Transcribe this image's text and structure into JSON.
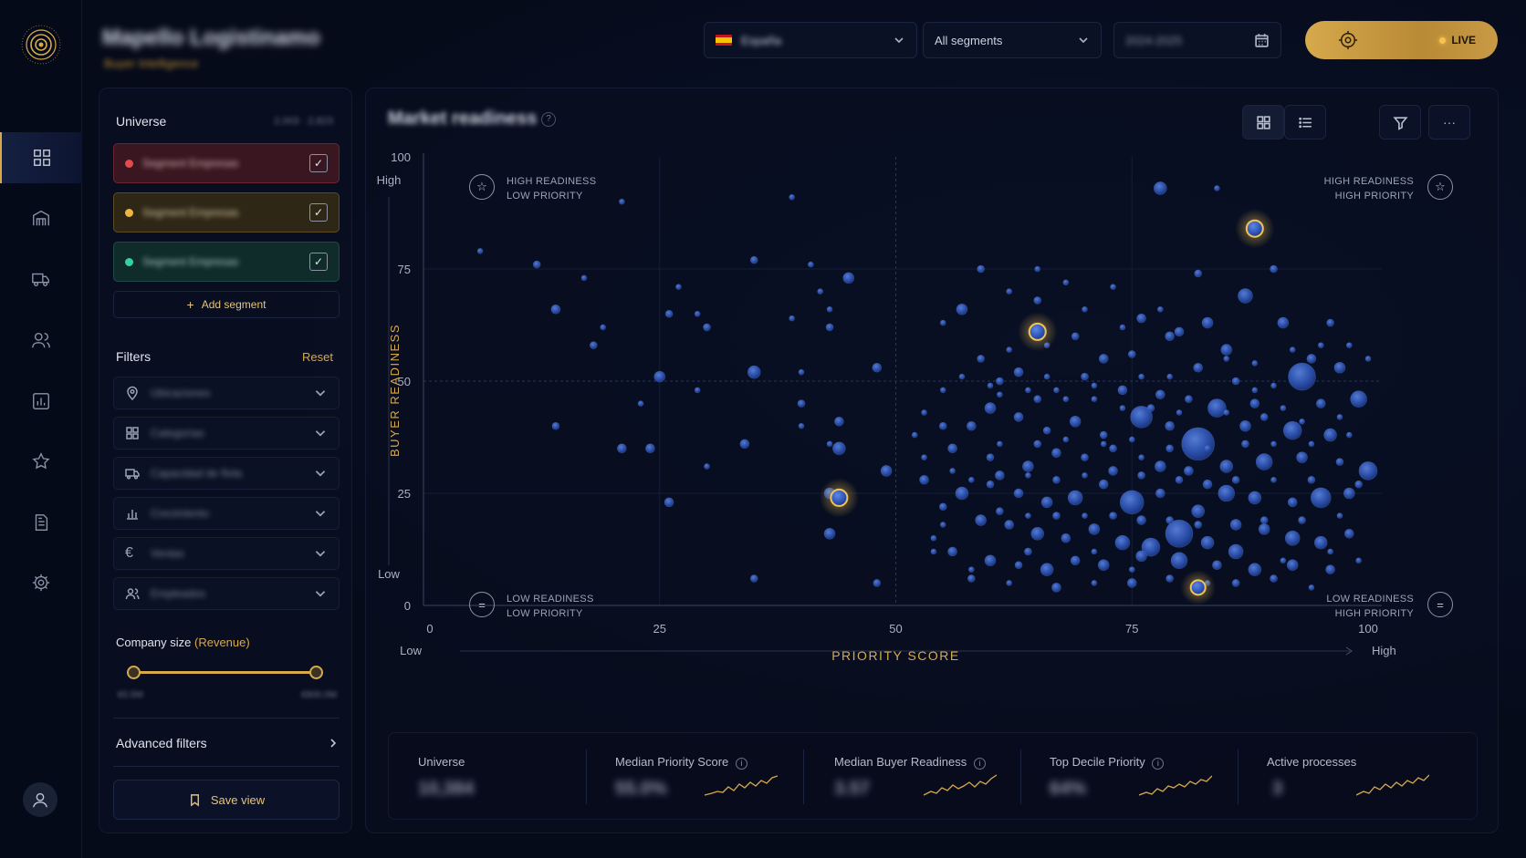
{
  "header": {
    "brand_title": "Mapello Logistinamo",
    "brand_subtitle": "Buyer Intelligence",
    "country_select": "España",
    "segment_select": "All segments",
    "date_field": "2024-2025",
    "live_label": "LIVE"
  },
  "sidebar_nav": [
    "grid-icon",
    "warehouse-icon",
    "truck-icon",
    "users-icon",
    "bar-chart-icon",
    "star-icon",
    "document-icon",
    "settings-icon"
  ],
  "panel": {
    "universe_title": "Universe",
    "universe_count": "2,003 · 2,823",
    "segments": [
      {
        "label": "Segment Empresas",
        "color": "#e34a4a",
        "checked": true
      },
      {
        "label": "Segment Empresas",
        "color": "#f0b63c",
        "checked": true
      },
      {
        "label": "Segment Empresas",
        "color": "#2fd3a4",
        "checked": true
      }
    ],
    "add_segment": "Add segment",
    "filters_title": "Filters",
    "reset": "Reset",
    "filters": [
      {
        "icon": "location-pin-icon",
        "label": "Ubicaciones"
      },
      {
        "icon": "grid-icon",
        "label": "Categorías"
      },
      {
        "icon": "truck-icon",
        "label": "Capacidad de flota"
      },
      {
        "icon": "bar-chart-icon",
        "label": "Crecimiento"
      },
      {
        "icon": "euro-icon",
        "label": "Ventas"
      },
      {
        "icon": "users-icon",
        "label": "Empleados"
      }
    ],
    "company_size_label": "Company size",
    "company_size_unit": "(Revenue)",
    "range_min": "€0.5M",
    "range_max": "€800.0M",
    "advanced_filters": "Advanced filters",
    "save_view": "Save view"
  },
  "card": {
    "title": "Market readiness",
    "quadrants": {
      "tl": [
        "HIGH READINESS",
        "LOW PRIORITY"
      ],
      "tr": [
        "HIGH READINESS",
        "HIGH PRIORITY"
      ],
      "bl": [
        "LOW READINESS",
        "LOW PRIORITY"
      ],
      "br": [
        "LOW READINESS",
        "HIGH PRIORITY"
      ]
    }
  },
  "stats": [
    {
      "label": "Universe",
      "value": "10,384",
      "spark": false
    },
    {
      "label": "Median Priority Score",
      "value": "55.0%",
      "spark": true,
      "info": true
    },
    {
      "label": "Median Buyer Readiness",
      "value": "3.57",
      "spark": true,
      "info": true
    },
    {
      "label": "Top Decile Priority",
      "value": "64%",
      "spark": true,
      "info": true
    },
    {
      "label": "Active processes",
      "value": "3",
      "spark": true
    }
  ],
  "chart_data": {
    "type": "scatter",
    "xlabel": "PRIORITY SCORE",
    "ylabel": "BUYER READINESS",
    "x_low": "Low",
    "x_high": "High",
    "y_low": "Low",
    "y_high": "High",
    "xlim": [
      0,
      100
    ],
    "ylim": [
      0,
      100
    ],
    "xticks": [
      0,
      25,
      50,
      75,
      100
    ],
    "yticks": [
      0,
      25,
      50,
      75,
      100
    ],
    "highlighted": [
      {
        "x": 44,
        "y": 24,
        "r": 9
      },
      {
        "x": 65,
        "y": 61,
        "r": 9
      },
      {
        "x": 88,
        "y": 84,
        "r": 9
      },
      {
        "x": 82,
        "y": 4,
        "r": 8
      }
    ],
    "points": [
      [
        6,
        79,
        3
      ],
      [
        12,
        76,
        4
      ],
      [
        14,
        66,
        5
      ],
      [
        17,
        73,
        3
      ],
      [
        19,
        62,
        3
      ],
      [
        21,
        90,
        3
      ],
      [
        18,
        58,
        4
      ],
      [
        14,
        40,
        4
      ],
      [
        25,
        51,
        6
      ],
      [
        23,
        45,
        3
      ],
      [
        26,
        65,
        4
      ],
      [
        27,
        71,
        3
      ],
      [
        29,
        48,
        3
      ],
      [
        29,
        65,
        3
      ],
      [
        30,
        62,
        4
      ],
      [
        24,
        35,
        5
      ],
      [
        30,
        31,
        3
      ],
      [
        26,
        23,
        5
      ],
      [
        35,
        77,
        4
      ],
      [
        35,
        52,
        7
      ],
      [
        34,
        36,
        5
      ],
      [
        39,
        91,
        3
      ],
      [
        41,
        76,
        3
      ],
      [
        39,
        64,
        3
      ],
      [
        40,
        52,
        3
      ],
      [
        42,
        70,
        3
      ],
      [
        43,
        66,
        3
      ],
      [
        43,
        62,
        4
      ],
      [
        40,
        40,
        3
      ],
      [
        40,
        45,
        4
      ],
      [
        44,
        41,
        5
      ],
      [
        44,
        35,
        7
      ],
      [
        43,
        36,
        3
      ],
      [
        45,
        73,
        6
      ],
      [
        43,
        25,
        6
      ],
      [
        43,
        16,
        6
      ],
      [
        48,
        53,
        5
      ],
      [
        49,
        30,
        6
      ],
      [
        48,
        5,
        4
      ],
      [
        35,
        6,
        4
      ],
      [
        21,
        35,
        5
      ]
    ],
    "big_points": [
      [
        78,
        93,
        7
      ],
      [
        84,
        93,
        3
      ],
      [
        90,
        75,
        4
      ],
      [
        87,
        69,
        8
      ],
      [
        59,
        75,
        4
      ],
      [
        65,
        75,
        3
      ],
      [
        68,
        72,
        3
      ],
      [
        73,
        71,
        3
      ],
      [
        82,
        74,
        4
      ],
      [
        76,
        64,
        5
      ],
      [
        80,
        61,
        5
      ],
      [
        83,
        63,
        6
      ],
      [
        91,
        63,
        6
      ],
      [
        96,
        63,
        4
      ],
      [
        98,
        58,
        3
      ],
      [
        94,
        55,
        5
      ],
      [
        97,
        53,
        6
      ],
      [
        93,
        51,
        15
      ],
      [
        86,
        50,
        4
      ],
      [
        82,
        53,
        5
      ],
      [
        85,
        57,
        6
      ],
      [
        79,
        60,
        5
      ],
      [
        75,
        56,
        4
      ],
      [
        72,
        55,
        5
      ],
      [
        69,
        60,
        4
      ],
      [
        66,
        58,
        3
      ],
      [
        62,
        57,
        3
      ],
      [
        59,
        55,
        4
      ],
      [
        57,
        51,
        3
      ],
      [
        61,
        50,
        4
      ],
      [
        63,
        52,
        5
      ],
      [
        66,
        51,
        3
      ],
      [
        70,
        51,
        4
      ],
      [
        74,
        48,
        5
      ],
      [
        78,
        47,
        5
      ],
      [
        81,
        46,
        4
      ],
      [
        84,
        44,
        10
      ],
      [
        88,
        45,
        5
      ],
      [
        91,
        44,
        3
      ],
      [
        95,
        45,
        5
      ],
      [
        99,
        46,
        9
      ],
      [
        96,
        38,
        7
      ],
      [
        92,
        39,
        10
      ],
      [
        87,
        40,
        6
      ],
      [
        82,
        36,
        18
      ],
      [
        79,
        40,
        5
      ],
      [
        76,
        42,
        12
      ],
      [
        72,
        38,
        4
      ],
      [
        69,
        41,
        6
      ],
      [
        66,
        39,
        4
      ],
      [
        63,
        42,
        5
      ],
      [
        60,
        44,
        6
      ],
      [
        58,
        40,
        5
      ],
      [
        55,
        40,
        4
      ],
      [
        53,
        43,
        3
      ],
      [
        52,
        38,
        3
      ],
      [
        56,
        35,
        5
      ],
      [
        60,
        33,
        4
      ],
      [
        64,
        31,
        6
      ],
      [
        67,
        34,
        5
      ],
      [
        70,
        33,
        4
      ],
      [
        73,
        35,
        4
      ],
      [
        76,
        33,
        3
      ],
      [
        78,
        31,
        6
      ],
      [
        81,
        30,
        5
      ],
      [
        85,
        31,
        7
      ],
      [
        89,
        32,
        9
      ],
      [
        93,
        33,
        6
      ],
      [
        97,
        32,
        4
      ],
      [
        100,
        30,
        10
      ],
      [
        98,
        25,
        6
      ],
      [
        95,
        24,
        11
      ],
      [
        92,
        23,
        5
      ],
      [
        88,
        24,
        7
      ],
      [
        85,
        25,
        9
      ],
      [
        82,
        21,
        7
      ],
      [
        78,
        25,
        5
      ],
      [
        75,
        23,
        13
      ],
      [
        72,
        27,
        5
      ],
      [
        69,
        24,
        8
      ],
      [
        66,
        23,
        6
      ],
      [
        63,
        25,
        5
      ],
      [
        60,
        27,
        4
      ],
      [
        57,
        25,
        7
      ],
      [
        55,
        22,
        4
      ],
      [
        53,
        28,
        5
      ],
      [
        59,
        19,
        6
      ],
      [
        62,
        18,
        5
      ],
      [
        65,
        16,
        7
      ],
      [
        68,
        15,
        5
      ],
      [
        71,
        17,
        6
      ],
      [
        74,
        14,
        8
      ],
      [
        77,
        13,
        10
      ],
      [
        80,
        16,
        15
      ],
      [
        83,
        14,
        7
      ],
      [
        86,
        12,
        8
      ],
      [
        89,
        17,
        6
      ],
      [
        92,
        15,
        8
      ],
      [
        95,
        14,
        7
      ],
      [
        98,
        16,
        5
      ],
      [
        96,
        8,
        5
      ],
      [
        92,
        9,
        6
      ],
      [
        88,
        8,
        7
      ],
      [
        84,
        9,
        5
      ],
      [
        80,
        10,
        9
      ],
      [
        76,
        11,
        6
      ],
      [
        72,
        9,
        6
      ],
      [
        69,
        10,
        5
      ],
      [
        66,
        8,
        7
      ],
      [
        63,
        9,
        4
      ],
      [
        60,
        10,
        6
      ],
      [
        56,
        12,
        5
      ],
      [
        54,
        15,
        3
      ],
      [
        58,
        6,
        4
      ],
      [
        62,
        5,
        3
      ],
      [
        67,
        4,
        5
      ],
      [
        71,
        5,
        3
      ],
      [
        75,
        5,
        5
      ],
      [
        79,
        6,
        4
      ],
      [
        86,
        5,
        4
      ],
      [
        90,
        6,
        4
      ],
      [
        94,
        4,
        3
      ],
      [
        61,
        21,
        4
      ],
      [
        64,
        20,
        3
      ],
      [
        67,
        20,
        4
      ],
      [
        70,
        20,
        3
      ],
      [
        73,
        20,
        4
      ],
      [
        76,
        19,
        5
      ],
      [
        79,
        19,
        4
      ],
      [
        82,
        18,
        4
      ],
      [
        86,
        18,
        6
      ],
      [
        89,
        19,
        4
      ],
      [
        93,
        19,
        4
      ],
      [
        97,
        20,
        3
      ],
      [
        58,
        28,
        3
      ],
      [
        61,
        29,
        5
      ],
      [
        64,
        29,
        3
      ],
      [
        67,
        28,
        4
      ],
      [
        70,
        29,
        3
      ],
      [
        73,
        30,
        5
      ],
      [
        76,
        29,
        4
      ],
      [
        80,
        28,
        4
      ],
      [
        83,
        27,
        5
      ],
      [
        86,
        28,
        4
      ],
      [
        90,
        28,
        3
      ],
      [
        94,
        28,
        4
      ],
      [
        99,
        27,
        4
      ],
      [
        61,
        36,
        3
      ],
      [
        65,
        36,
        4
      ],
      [
        68,
        37,
        3
      ],
      [
        72,
        36,
        3
      ],
      [
        75,
        37,
        3
      ],
      [
        79,
        35,
        4
      ],
      [
        83,
        35,
        3
      ],
      [
        87,
        36,
        4
      ],
      [
        90,
        36,
        3
      ],
      [
        94,
        36,
        3
      ],
      [
        98,
        38,
        3
      ],
      [
        61,
        47,
        3
      ],
      [
        65,
        46,
        4
      ],
      [
        68,
        46,
        3
      ],
      [
        71,
        46,
        3
      ],
      [
        74,
        44,
        3
      ],
      [
        77,
        44,
        4
      ],
      [
        80,
        43,
        3
      ],
      [
        85,
        43,
        3
      ],
      [
        89,
        42,
        4
      ],
      [
        93,
        41,
        3
      ],
      [
        97,
        42,
        3
      ],
      [
        60,
        49,
        3
      ],
      [
        64,
        48,
        3
      ],
      [
        67,
        48,
        3
      ],
      [
        71,
        49,
        3
      ],
      [
        88,
        48,
        3
      ],
      [
        90,
        49,
        3
      ],
      [
        76,
        51,
        3
      ],
      [
        79,
        51,
        3
      ],
      [
        55,
        63,
        3
      ],
      [
        57,
        66,
        6
      ],
      [
        62,
        70,
        3
      ],
      [
        65,
        68,
        4
      ],
      [
        70,
        66,
        3
      ],
      [
        74,
        62,
        3
      ],
      [
        78,
        66,
        3
      ],
      [
        85,
        55,
        3
      ],
      [
        88,
        54,
        3
      ],
      [
        92,
        57,
        3
      ],
      [
        95,
        58,
        3
      ],
      [
        100,
        55,
        3
      ],
      [
        55,
        48,
        3
      ],
      [
        53,
        33,
        3
      ],
      [
        56,
        30,
        3
      ],
      [
        58,
        8,
        3
      ],
      [
        54,
        12,
        3
      ],
      [
        55,
        18,
        3
      ],
      [
        91,
        10,
        3
      ],
      [
        96,
        12,
        3
      ],
      [
        99,
        10,
        3
      ],
      [
        64,
        12,
        4
      ],
      [
        71,
        12,
        3
      ],
      [
        75,
        8,
        3
      ],
      [
        83,
        5,
        3
      ]
    ]
  }
}
